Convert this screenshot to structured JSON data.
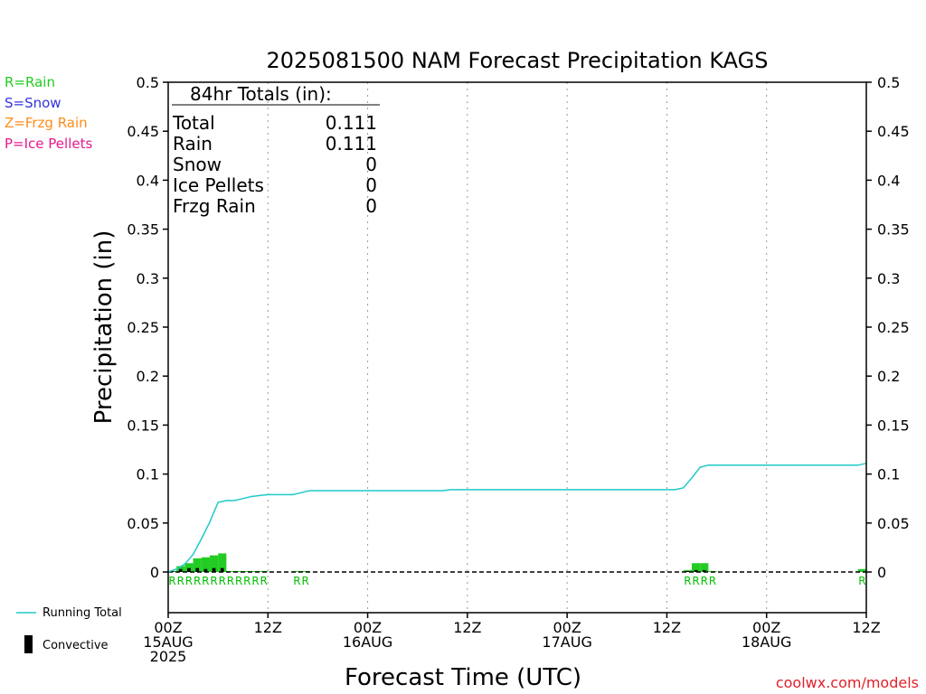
{
  "colors": {
    "rain": "#22cc22",
    "snow": "#3333dd",
    "frzg_rain": "#ff8c1a",
    "ice_pellets": "#e6198c",
    "running_total": "#20c8c8",
    "convective": "#000000",
    "credit": "#e0202a"
  },
  "ptype_legend": [
    "R=Rain",
    "S=Snow",
    "Z=Frzg Rain",
    "P=Ice Pellets"
  ],
  "series_legend": {
    "running_total": "Running Total",
    "convective": "Convective"
  },
  "credit": "coolwx.com/models",
  "chart_data": {
    "type": "bar",
    "title": "2025081500 NAM Forecast Precipitation KAGS",
    "xlabel": "Forecast Time (UTC)",
    "ylabel": "Precipitation (in)",
    "ylim": [
      0,
      0.5
    ],
    "y_ticks": [
      "0",
      "0.05",
      "0.1",
      "0.15",
      "0.2",
      "0.25",
      "0.3",
      "0.35",
      "0.4",
      "0.45",
      "0.5"
    ],
    "xlim_hours": [
      0,
      84
    ],
    "x_ticks": [
      {
        "hour": 0,
        "lines": [
          "00Z",
          "15AUG",
          "2025"
        ]
      },
      {
        "hour": 12,
        "lines": [
          "12Z"
        ]
      },
      {
        "hour": 24,
        "lines": [
          "00Z",
          "16AUG"
        ]
      },
      {
        "hour": 36,
        "lines": [
          "12Z"
        ]
      },
      {
        "hour": 48,
        "lines": [
          "00Z",
          "17AUG"
        ]
      },
      {
        "hour": 60,
        "lines": [
          "12Z"
        ]
      },
      {
        "hour": 72,
        "lines": [
          "00Z",
          "18AUG"
        ]
      },
      {
        "hour": 84,
        "lines": [
          "12Z"
        ]
      }
    ],
    "grid": "vertical dotted every 12h",
    "totals_box": {
      "heading": "84hr Totals (in):",
      "rows": [
        {
          "label": "Total",
          "value": "0.111"
        },
        {
          "label": "Rain",
          "value": "0.111"
        },
        {
          "label": "Snow",
          "value": "0"
        },
        {
          "label": "Ice Pellets",
          "value": "0"
        },
        {
          "label": "Frzg Rain",
          "value": "0"
        }
      ]
    },
    "hourly_precip": {
      "hours": [
        1,
        2,
        3,
        4,
        5,
        6,
        7,
        8,
        9,
        10,
        11,
        12,
        16,
        17,
        63,
        64,
        65,
        66,
        84
      ],
      "total": [
        0.001,
        0.006,
        0.009,
        0.014,
        0.015,
        0.017,
        0.019,
        0.001,
        0.001,
        0.001,
        0.001,
        0.001,
        0.001,
        0.001,
        0.002,
        0.009,
        0.009,
        0.001,
        0.003
      ],
      "convective": [
        0.001,
        0.003,
        0.004,
        0.004,
        0.003,
        0.004,
        0.004,
        0.0,
        0.0,
        0.0,
        0.0,
        0.0,
        0.0,
        0.0,
        0.001,
        0.002,
        0.002,
        0.0,
        0.0
      ],
      "ptype": [
        "R",
        "R",
        "R",
        "R",
        "R",
        "R",
        "R",
        "R",
        "R",
        "R",
        "R",
        "R",
        "R",
        "R",
        "R",
        "R",
        "R",
        "R",
        "R"
      ]
    },
    "running_total": {
      "name": "Running Total",
      "x": [
        0,
        1,
        2,
        3,
        4,
        5,
        6,
        7,
        8,
        9,
        10,
        11,
        12,
        13,
        14,
        15,
        16,
        17,
        33,
        34,
        60,
        61,
        62,
        63,
        64,
        65,
        66,
        67,
        83,
        84
      ],
      "y": [
        0,
        0.003,
        0.008,
        0.018,
        0.034,
        0.051,
        0.071,
        0.073,
        0.073,
        0.075,
        0.077,
        0.078,
        0.079,
        0.079,
        0.079,
        0.079,
        0.081,
        0.083,
        0.083,
        0.084,
        0.084,
        0.084,
        0.086,
        0.096,
        0.107,
        0.109,
        0.109,
        0.109,
        0.109,
        0.111
      ]
    }
  }
}
